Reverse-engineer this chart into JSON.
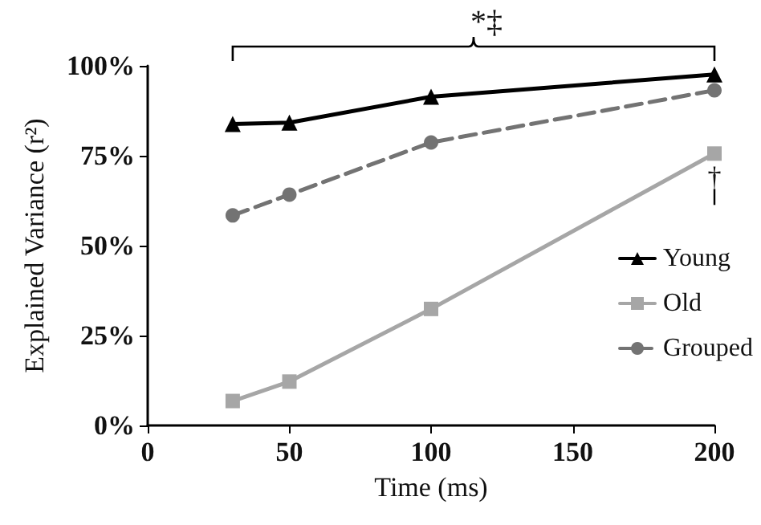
{
  "chart_data": {
    "type": "line",
    "xlabel": "Time (ms)",
    "ylabel": "Explained Variance (r²)",
    "series": [
      {
        "name": "Young",
        "color": "#000000",
        "marker": "triangle",
        "line_style": "solid",
        "x": [
          30,
          50,
          100,
          200
        ],
        "values": [
          83.8,
          84.2,
          91.4,
          97.6
        ]
      },
      {
        "name": "Old",
        "color": "#a6a6a6",
        "marker": "square",
        "line_style": "solid",
        "x": [
          30,
          50,
          100,
          200
        ],
        "values": [
          6.8,
          12.2,
          32.4,
          75.6
        ]
      },
      {
        "name": "Grouped",
        "color": "#737373",
        "marker": "circle",
        "line_style": "dashed",
        "x": [
          30,
          50,
          100,
          200
        ],
        "values": [
          58.4,
          64.2,
          78.7,
          93.2
        ]
      }
    ],
    "xlim": [
      0,
      200
    ],
    "xticks": [
      0,
      50,
      100,
      150,
      200
    ],
    "ylim": [
      0,
      100
    ],
    "yticks": [
      {
        "value": 0,
        "label": "0%"
      },
      {
        "value": 25,
        "label": "25%"
      },
      {
        "value": 50,
        "label": "50%"
      },
      {
        "value": 75,
        "label": "75%"
      },
      {
        "value": 100,
        "label": "100%"
      }
    ],
    "annotations": [
      "*‡",
      "†"
    ],
    "grid": false,
    "legend": "right"
  }
}
